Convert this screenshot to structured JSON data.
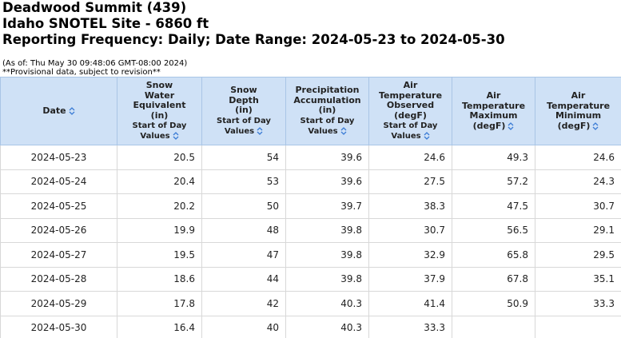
{
  "header": {
    "title": "Deadwood Summit (439)",
    "site": "Idaho SNOTEL Site - 6860 ft",
    "range": "Reporting Frequency: Daily; Date Range: 2024-05-23 to 2024-05-30",
    "as_of": "(As of: Thu May 30 09:48:06 GMT-08:00 2024)",
    "note": "**Provisional data, subject to revision**"
  },
  "table": {
    "columns": [
      {
        "label": [
          "Date"
        ]
      },
      {
        "label": [
          "Snow",
          "Water",
          "Equivalent",
          "(in)"
        ],
        "sub": [
          "Start of Day",
          "Values"
        ]
      },
      {
        "label": [
          "Snow",
          "Depth",
          "(in)"
        ],
        "sub": [
          "Start of Day",
          "Values"
        ]
      },
      {
        "label": [
          "Precipitation",
          "Accumulation",
          "(in)"
        ],
        "sub": [
          "Start of Day",
          "Values"
        ]
      },
      {
        "label": [
          "Air",
          "Temperature",
          "Observed",
          "(degF)"
        ],
        "sub": [
          "Start of Day",
          "Values"
        ]
      },
      {
        "label": [
          "Air",
          "Temperature",
          "Maximum",
          "(degF)"
        ]
      },
      {
        "label": [
          "Air",
          "Temperature",
          "Minimum",
          "(degF)"
        ]
      }
    ],
    "rows": [
      [
        "2024-05-23",
        20.5,
        54,
        39.6,
        24.6,
        49.3,
        24.6
      ],
      [
        "2024-05-24",
        20.4,
        53,
        39.6,
        27.5,
        57.2,
        24.3
      ],
      [
        "2024-05-25",
        20.2,
        50,
        39.7,
        38.3,
        47.5,
        30.7
      ],
      [
        "2024-05-26",
        19.9,
        48,
        39.8,
        30.7,
        56.5,
        29.1
      ],
      [
        "2024-05-27",
        19.5,
        47,
        39.8,
        32.9,
        65.8,
        29.5
      ],
      [
        "2024-05-28",
        18.6,
        44,
        39.8,
        37.9,
        67.8,
        35.1
      ],
      [
        "2024-05-29",
        17.8,
        42,
        40.3,
        41.4,
        50.9,
        33.3
      ],
      [
        "2024-05-30",
        16.4,
        40,
        40.3,
        33.3,
        null,
        null
      ]
    ]
  }
}
